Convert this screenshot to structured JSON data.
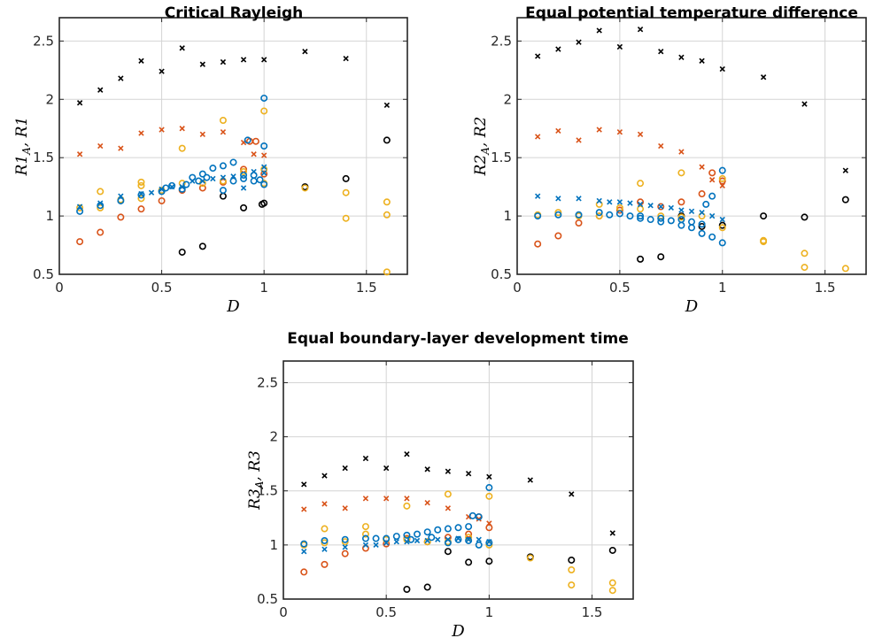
{
  "colors": {
    "black": "#000000",
    "orange": "#d95319",
    "yellow": "#edb120",
    "blue": "#0072bd"
  },
  "chart_data": [
    {
      "type": "scatter",
      "title": "Critical Rayleigh",
      "ylabel": "R1_A,  R1",
      "xlabel": "D",
      "xlim": [
        0,
        1.7
      ],
      "ylim": [
        0.5,
        2.7
      ],
      "xticks": [
        0,
        0.5,
        1,
        1.5
      ],
      "yticks": [
        0.5,
        1,
        1.5,
        2,
        2.5
      ],
      "grid": true,
      "series": [
        {
          "color": "black",
          "marker": "x",
          "x": [
            0.1,
            0.2,
            0.3,
            0.4,
            0.5,
            0.6,
            0.7,
            0.8,
            0.9,
            1.0,
            1.2,
            1.4,
            1.6
          ],
          "y": [
            1.97,
            2.08,
            2.18,
            2.33,
            2.24,
            2.44,
            2.3,
            2.32,
            2.34,
            2.34,
            2.41,
            2.35,
            1.95
          ]
        },
        {
          "color": "orange",
          "marker": "x",
          "x": [
            0.1,
            0.2,
            0.3,
            0.4,
            0.5,
            0.6,
            0.7,
            0.8,
            0.9,
            0.95,
            1.0
          ],
          "y": [
            1.53,
            1.6,
            1.58,
            1.71,
            1.74,
            1.75,
            1.7,
            1.72,
            1.63,
            1.53,
            1.52
          ]
        },
        {
          "color": "black",
          "marker": "o",
          "x": [
            0.6,
            0.7,
            0.8,
            0.9,
            0.99,
            1.0,
            1.2,
            1.4,
            1.6
          ],
          "y": [
            0.69,
            0.74,
            1.17,
            1.07,
            1.1,
            1.11,
            1.25,
            1.32,
            1.65
          ]
        },
        {
          "color": "orange",
          "marker": "o",
          "x": [
            0.1,
            0.2,
            0.3,
            0.4,
            0.5,
            0.6,
            0.7,
            0.8,
            0.9,
            0.93,
            0.96,
            1.0
          ],
          "y": [
            0.78,
            0.86,
            0.99,
            1.06,
            1.13,
            1.22,
            1.24,
            1.29,
            1.4,
            1.64,
            1.64,
            1.36
          ]
        },
        {
          "color": "yellow",
          "marker": "o",
          "x": [
            0.1,
            0.2,
            0.2,
            0.3,
            0.4,
            0.4,
            0.4,
            0.5,
            0.6,
            0.6,
            0.7,
            0.8,
            0.8,
            0.9,
            1.0,
            1.0,
            1.0,
            1.2,
            1.4,
            1.4,
            1.6,
            1.6,
            1.6
          ],
          "y": [
            1.07,
            1.07,
            1.21,
            1.14,
            1.15,
            1.26,
            1.29,
            1.22,
            1.28,
            1.58,
            1.28,
            1.82,
            1.3,
            1.38,
            1.9,
            1.28,
            1.4,
            1.24,
            1.2,
            0.98,
            1.12,
            1.01,
            0.52
          ]
        },
        {
          "color": "blue",
          "marker": "o",
          "x": [
            0.1,
            0.2,
            0.3,
            0.4,
            0.5,
            0.52,
            0.55,
            0.6,
            0.62,
            0.65,
            0.68,
            0.7,
            0.72,
            0.75,
            0.8,
            0.8,
            0.85,
            0.85,
            0.9,
            0.9,
            0.92,
            0.95,
            0.95,
            0.98,
            1.0,
            1.0,
            1.0
          ],
          "y": [
            1.04,
            1.09,
            1.13,
            1.18,
            1.21,
            1.24,
            1.26,
            1.23,
            1.27,
            1.33,
            1.3,
            1.36,
            1.33,
            1.41,
            1.43,
            1.22,
            1.46,
            1.3,
            1.35,
            1.32,
            1.65,
            1.35,
            1.3,
            1.31,
            2.01,
            1.6,
            1.27
          ]
        },
        {
          "color": "blue",
          "marker": "x",
          "x": [
            0.1,
            0.2,
            0.3,
            0.4,
            0.45,
            0.5,
            0.55,
            0.6,
            0.65,
            0.7,
            0.75,
            0.8,
            0.85,
            0.9,
            0.95,
            1.0,
            1.0
          ],
          "y": [
            1.08,
            1.11,
            1.17,
            1.19,
            1.2,
            1.23,
            1.25,
            1.25,
            1.3,
            1.3,
            1.32,
            1.33,
            1.34,
            1.24,
            1.38,
            1.42,
            1.37
          ]
        }
      ]
    },
    {
      "type": "scatter",
      "title": "Equal potential temperature difference",
      "ylabel": "R2_A,  R2",
      "xlabel": "D",
      "xlim": [
        0,
        1.7
      ],
      "ylim": [
        0.5,
        2.7
      ],
      "xticks": [
        0,
        0.5,
        1,
        1.5
      ],
      "yticks": [
        0.5,
        1,
        1.5,
        2,
        2.5
      ],
      "grid": true,
      "series": [
        {
          "color": "black",
          "marker": "x",
          "x": [
            0.1,
            0.2,
            0.3,
            0.4,
            0.5,
            0.6,
            0.7,
            0.8,
            0.9,
            1.0,
            1.2,
            1.4,
            1.6
          ],
          "y": [
            2.37,
            2.43,
            2.49,
            2.59,
            2.45,
            2.6,
            2.41,
            2.36,
            2.33,
            2.26,
            2.19,
            1.96,
            1.39
          ]
        },
        {
          "color": "orange",
          "marker": "x",
          "x": [
            0.1,
            0.2,
            0.3,
            0.4,
            0.5,
            0.6,
            0.7,
            0.8,
            0.9,
            0.95,
            1.0
          ],
          "y": [
            1.68,
            1.73,
            1.65,
            1.74,
            1.72,
            1.7,
            1.6,
            1.55,
            1.42,
            1.31,
            1.26
          ]
        },
        {
          "color": "black",
          "marker": "o",
          "x": [
            0.6,
            0.7,
            0.8,
            0.9,
            1.0,
            1.2,
            1.4,
            1.6
          ],
          "y": [
            0.63,
            0.65,
            1.0,
            0.91,
            0.92,
            1.0,
            0.99,
            1.14
          ]
        },
        {
          "color": "orange",
          "marker": "o",
          "x": [
            0.1,
            0.2,
            0.3,
            0.4,
            0.5,
            0.6,
            0.7,
            0.8,
            0.9,
            0.95,
            1.0
          ],
          "y": [
            0.76,
            0.83,
            0.94,
            1.0,
            1.05,
            1.12,
            1.08,
            1.12,
            1.19,
            1.37,
            1.3
          ]
        },
        {
          "color": "yellow",
          "marker": "o",
          "x": [
            0.1,
            0.2,
            0.3,
            0.4,
            0.4,
            0.5,
            0.6,
            0.6,
            0.7,
            0.8,
            0.8,
            0.9,
            1.0,
            1.0,
            1.2,
            1.2,
            1.4,
            1.4,
            1.6
          ],
          "y": [
            1.01,
            1.03,
            1.0,
            1.0,
            1.1,
            1.07,
            1.28,
            1.06,
            1.0,
            1.37,
            0.99,
            1.0,
            1.32,
            0.9,
            0.78,
            0.79,
            0.68,
            0.56,
            0.55
          ]
        },
        {
          "color": "blue",
          "marker": "o",
          "x": [
            0.1,
            0.2,
            0.3,
            0.4,
            0.45,
            0.5,
            0.55,
            0.6,
            0.6,
            0.65,
            0.7,
            0.7,
            0.75,
            0.8,
            0.8,
            0.85,
            0.85,
            0.9,
            0.9,
            0.92,
            0.95,
            0.95,
            1.0,
            1.0
          ],
          "y": [
            1.0,
            1.01,
            1.01,
            1.03,
            1.01,
            1.02,
            1.0,
            1.0,
            0.98,
            0.97,
            0.98,
            0.95,
            0.96,
            0.92,
            0.97,
            0.9,
            0.95,
            0.85,
            0.93,
            1.1,
            1.17,
            0.82,
            1.39,
            0.77
          ]
        },
        {
          "color": "blue",
          "marker": "x",
          "x": [
            0.1,
            0.2,
            0.3,
            0.4,
            0.45,
            0.5,
            0.55,
            0.6,
            0.65,
            0.7,
            0.75,
            0.8,
            0.85,
            0.9,
            0.95,
            1.0
          ],
          "y": [
            1.17,
            1.15,
            1.15,
            1.13,
            1.12,
            1.12,
            1.11,
            1.1,
            1.09,
            1.08,
            1.07,
            1.05,
            1.04,
            1.03,
            1.0,
            0.97
          ]
        }
      ]
    },
    {
      "type": "scatter",
      "title": "Equal boundary-layer development time",
      "ylabel": "R3_A,  R3",
      "xlabel": "D",
      "xlim": [
        0,
        1.7
      ],
      "ylim": [
        0.5,
        2.7
      ],
      "xticks": [
        0,
        0.5,
        1,
        1.5
      ],
      "yticks": [
        0.5,
        1,
        1.5,
        2,
        2.5
      ],
      "grid": true,
      "series": [
        {
          "color": "black",
          "marker": "x",
          "x": [
            0.1,
            0.2,
            0.3,
            0.4,
            0.5,
            0.6,
            0.7,
            0.8,
            0.9,
            1.0,
            1.2,
            1.4,
            1.6
          ],
          "y": [
            1.56,
            1.64,
            1.71,
            1.8,
            1.71,
            1.84,
            1.7,
            1.68,
            1.66,
            1.63,
            1.6,
            1.47,
            1.11
          ]
        },
        {
          "color": "orange",
          "marker": "x",
          "x": [
            0.1,
            0.2,
            0.3,
            0.4,
            0.5,
            0.6,
            0.7,
            0.8,
            0.9,
            0.95,
            1.0
          ],
          "y": [
            1.33,
            1.38,
            1.34,
            1.43,
            1.43,
            1.43,
            1.39,
            1.34,
            1.26,
            1.24,
            1.2
          ]
        },
        {
          "color": "black",
          "marker": "o",
          "x": [
            0.6,
            0.7,
            0.8,
            0.9,
            1.0,
            1.2,
            1.4,
            1.6
          ],
          "y": [
            0.59,
            0.61,
            0.94,
            0.84,
            0.85,
            0.89,
            0.86,
            0.95
          ]
        },
        {
          "color": "orange",
          "marker": "o",
          "x": [
            0.1,
            0.2,
            0.3,
            0.4,
            0.5,
            0.6,
            0.7,
            0.8,
            0.9,
            0.95,
            1.0
          ],
          "y": [
            0.75,
            0.82,
            0.92,
            0.97,
            1.01,
            1.06,
            1.03,
            1.07,
            1.1,
            1.26,
            1.16
          ]
        },
        {
          "color": "yellow",
          "marker": "o",
          "x": [
            0.1,
            0.2,
            0.2,
            0.3,
            0.4,
            0.4,
            0.5,
            0.6,
            0.6,
            0.7,
            0.8,
            0.8,
            0.9,
            1.0,
            1.0,
            1.2,
            1.4,
            1.4,
            1.6,
            1.6
          ],
          "y": [
            1.0,
            1.02,
            1.15,
            1.03,
            1.1,
            1.17,
            1.05,
            1.36,
            1.05,
            1.03,
            1.47,
            1.03,
            1.07,
            1.45,
            1.0,
            0.88,
            0.77,
            0.63,
            0.65,
            0.58
          ]
        },
        {
          "color": "blue",
          "marker": "o",
          "x": [
            0.1,
            0.2,
            0.3,
            0.4,
            0.45,
            0.5,
            0.55,
            0.6,
            0.62,
            0.65,
            0.7,
            0.72,
            0.75,
            0.8,
            0.8,
            0.85,
            0.85,
            0.9,
            0.9,
            0.92,
            0.95,
            0.95,
            1.0,
            1.0
          ],
          "y": [
            1.01,
            1.04,
            1.05,
            1.06,
            1.06,
            1.06,
            1.08,
            1.09,
            1.05,
            1.1,
            1.12,
            1.07,
            1.14,
            1.15,
            1.02,
            1.16,
            1.05,
            1.17,
            1.04,
            1.27,
            1.26,
            1.0,
            1.53,
            1.02
          ]
        },
        {
          "color": "blue",
          "marker": "x",
          "x": [
            0.1,
            0.2,
            0.3,
            0.4,
            0.45,
            0.5,
            0.55,
            0.6,
            0.65,
            0.7,
            0.75,
            0.8,
            0.85,
            0.9,
            0.95,
            1.0
          ],
          "y": [
            0.94,
            0.96,
            0.98,
            1.0,
            1.0,
            1.02,
            1.03,
            1.03,
            1.04,
            1.04,
            1.05,
            1.05,
            1.06,
            1.05,
            1.05,
            1.03
          ]
        }
      ]
    }
  ]
}
